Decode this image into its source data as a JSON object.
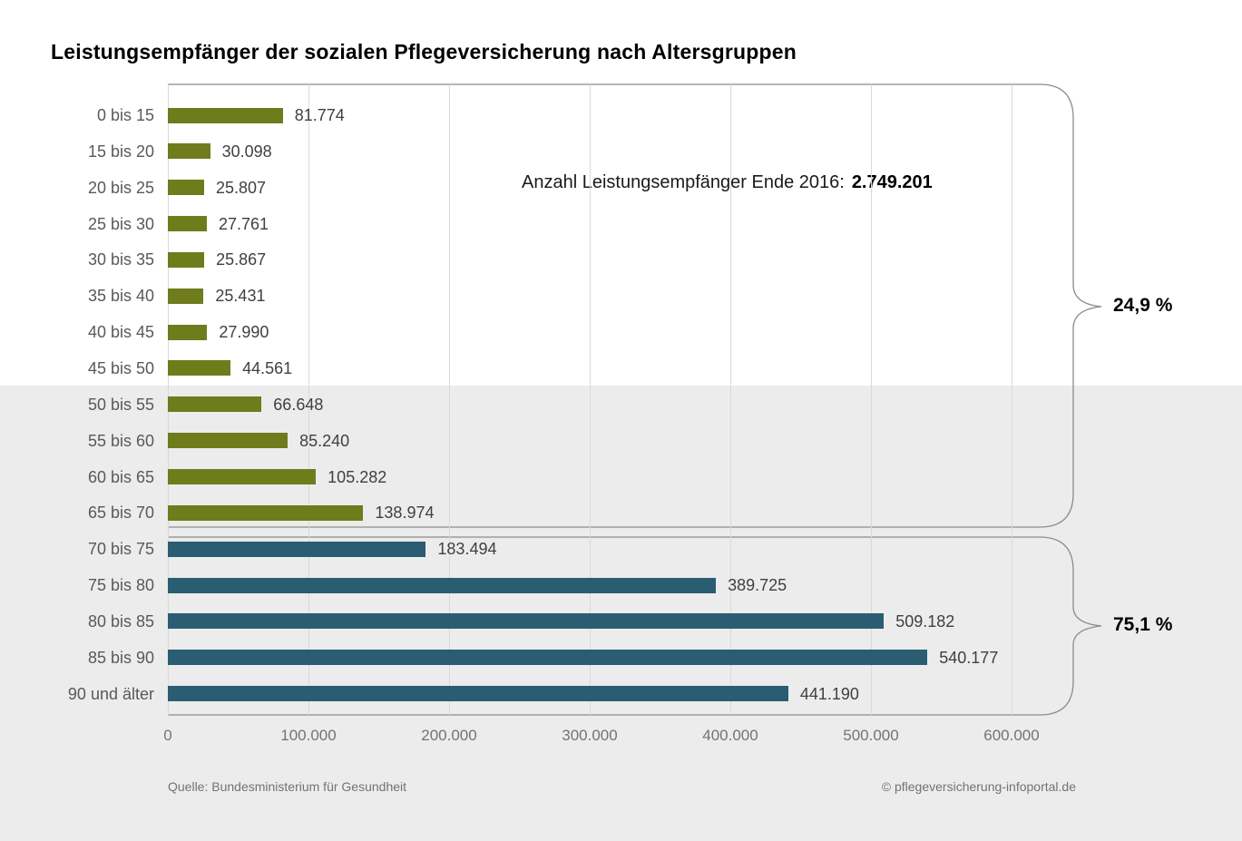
{
  "title": "Leistungsempfänger der sozialen Pflegeversicherung nach Altersgruppen",
  "annotation": {
    "label": "Anzahl Leistungsempfänger Ende 2016:",
    "value": "2.749.201"
  },
  "chart_data": {
    "type": "bar",
    "orientation": "horizontal",
    "title": "Leistungsempfänger der sozialen Pflegeversicherung nach Altersgruppen",
    "categories": [
      "0 bis 15",
      "15 bis 20",
      "20 bis 25",
      "25 bis 30",
      "30 bis 35",
      "35 bis 40",
      "40 bis 45",
      "45 bis 50",
      "50 bis 55",
      "55 bis 60",
      "60 bis 65",
      "65 bis 70",
      "70 bis 75",
      "75 bis 80",
      "80 bis 85",
      "85 bis 90",
      "90 und älter"
    ],
    "values": [
      81774,
      30098,
      25807,
      27761,
      25867,
      25431,
      27990,
      44561,
      66648,
      85240,
      105282,
      138974,
      183494,
      389725,
      509182,
      540177,
      441190
    ],
    "value_labels": [
      "81.774",
      "30.098",
      "25.807",
      "27.761",
      "25.867",
      "25.431",
      "27.990",
      "44.561",
      "66.648",
      "85.240",
      "105.282",
      "138.974",
      "183.494",
      "389.725",
      "509.182",
      "540.177",
      "441.190"
    ],
    "groups": [
      {
        "label": "24,9 %",
        "color": "#6e7c1c",
        "from_index": 0,
        "to_index": 11
      },
      {
        "label": "75,1 %",
        "color": "#2a5d72",
        "from_index": 12,
        "to_index": 16
      }
    ],
    "x_ticks": [
      "0",
      "100.000",
      "200.000",
      "300.000",
      "400.000",
      "500.000",
      "600.000"
    ],
    "x_tick_values": [
      0,
      100000,
      200000,
      300000,
      400000,
      500000,
      600000
    ],
    "xlim": [
      0,
      620000
    ],
    "grid": true,
    "legend": "none"
  },
  "footer": {
    "source": "Quelle: Bundesministerium für Gesundheit",
    "copyright": "© pflegeversicherung-infoportal.de"
  },
  "colors": {
    "green_bar": "#6e7c1c",
    "teal_bar": "#2a5d72",
    "band": "#ececec",
    "gridline": "#d9d9d9",
    "brace": "#8c8c8c",
    "category_label": "#595959",
    "value_label": "#404040",
    "tick_label": "#737373",
    "title": "#000000"
  }
}
